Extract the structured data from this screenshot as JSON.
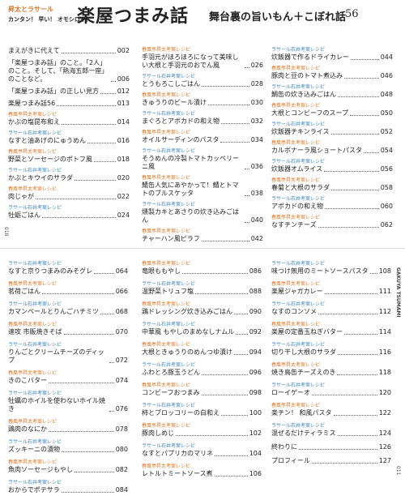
{
  "header": {
    "authors": "昇太とラサール",
    "tagline": "カンタン！ 早い！ オモシロイ！",
    "title": "楽屋つまみ話",
    "subtitle": "舞台裏の旨いもん＋こぼれ話",
    "subtitle_number": "56"
  },
  "left_page_number": "010",
  "right_page_number": "011",
  "side_label": "GAKUYA TSUMAMI",
  "top_columns": [
    [
      {
        "title": "まえがきに代えて",
        "page": "002"
      },
      {
        "title": "「楽屋つまみ話」のこと。「2人」のこと。そして、「熱海五郎一座」のことなど。",
        "page": "006"
      },
      {
        "title": "「楽屋つまみ話」の正しい見方",
        "page": "012"
      },
      {
        "title": "楽屋つまみ話56",
        "page": "013"
      },
      {
        "tag": "春風亭昇太考案レシピ",
        "tag_color": "#e0782a",
        "title": "かぶの塩昆布和え",
        "page": "014"
      },
      {
        "tag": "ラサール石井考案レシピ",
        "tag_color": "#3f86c6",
        "title": "なすと油あげのにゅうめん",
        "page": "016"
      },
      {
        "tag": "春風亭昇太考案レシピ",
        "tag_color": "#e0782a",
        "title": "野菜とソーセージのポトフ風",
        "page": "018"
      },
      {
        "tag": "ラサール石井考案レシピ",
        "tag_color": "#3f86c6",
        "title": "かぶとキウイのサラダ",
        "page": "020"
      },
      {
        "tag": "春風亭昇太考案レシピ",
        "tag_color": "#e0782a",
        "title": "肉じゃが",
        "page": "022"
      },
      {
        "tag": "ラサール石井考案レシピ",
        "tag_color": "#3f86c6",
        "title": "牡蛎ごはん",
        "page": "024"
      }
    ],
    [
      {
        "tag": "春風亭昇太考案レシピ",
        "tag_color": "#e0782a",
        "title": "手羽元がほろほろになって美味しい大根と手羽元のおでん風",
        "page": "026"
      },
      {
        "tag": "ラサール石井考案レシピ",
        "tag_color": "#3f86c6",
        "title": "とうもろこしごはん",
        "page": "028"
      },
      {
        "tag": "春風亭昇太考案レシピ",
        "tag_color": "#e0782a",
        "title": "きゅうりのビール漬け",
        "page": "030"
      },
      {
        "tag": "ラサール石井考案レシピ",
        "tag_color": "#3f86c6",
        "title": "まぐろとアボカドの和え物",
        "page": "032"
      },
      {
        "tag": "春風亭昇太考案レシピ",
        "tag_color": "#e0782a",
        "title": "オイルサーディンのパスタ",
        "page": "034"
      },
      {
        "tag": "ラサール石井考案レシピ",
        "tag_color": "#3f86c6",
        "title": "そうめんの冷製トマトカッペリーニ風",
        "page": "036"
      },
      {
        "tag": "春風亭昇太考案レシピ",
        "tag_color": "#e0782a",
        "title": "鯖缶人気にあやかって！鯖とトマトのブルスケッタ",
        "page": "038"
      },
      {
        "tag": "ラサール石井考案レシピ",
        "tag_color": "#3f86c6",
        "title": "燻製カキとあさりの炊き込みごはん",
        "page": "040"
      },
      {
        "tag": "春風亭昇太考案レシピ",
        "tag_color": "#e0782a",
        "title": "チャーハン風ピラフ",
        "page": "042"
      }
    ],
    [
      {
        "tag": "ラサール石井考案レシピ",
        "tag_color": "#3f86c6",
        "title": "炊飯器で作るドライカレー",
        "page": "044"
      },
      {
        "tag": "春風亭昇太考案レシピ",
        "tag_color": "#e0782a",
        "title": "豚肉と豆のトマト煮込み",
        "page": "046"
      },
      {
        "tag": "ラサール石井考案レシピ",
        "tag_color": "#3f86c6",
        "title": "鯛缶の炊き込みごはん",
        "page": "048"
      },
      {
        "tag": "春風亭昇太考案レシピ",
        "tag_color": "#e0782a",
        "title": "大根とコンビーフのスープ",
        "page": "050"
      },
      {
        "tag": "ラサール石井考案レシピ",
        "tag_color": "#3f86c6",
        "title": "炊飯器チキンライス",
        "page": "052"
      },
      {
        "tag": "春風亭昇太考案レシピ",
        "tag_color": "#e0782a",
        "title": "カルボナーラ風ショートパスタ",
        "page": "054"
      },
      {
        "tag": "ラサール石井考案レシピ",
        "tag_color": "#3f86c6",
        "title": "炊飯器オムライス",
        "page": "056"
      },
      {
        "tag": "春風亭昇太考案レシピ",
        "tag_color": "#e0782a",
        "title": "春菊と大根のサラダ",
        "page": "058"
      },
      {
        "tag": "ラサール石井考案レシピ",
        "tag_color": "#3f86c6",
        "title": "アボカドの和え物",
        "page": "060"
      },
      {
        "tag": "春風亭昇太考案レシピ",
        "tag_color": "#e0782a",
        "title": "なすチンチーズ",
        "page": "062"
      }
    ]
  ],
  "bottom_columns": [
    [
      {
        "tag": "ラサール石井考案レシピ",
        "tag_color": "#3f86c6",
        "title": "なすと京りつまみのみそグレ",
        "page": "064"
      },
      {
        "tag": "春風亭昇太考案レシピ",
        "tag_color": "#e0782a",
        "title": "茗荷ごはん",
        "page": "066"
      },
      {
        "tag": "ラサール石井考案レシピ",
        "tag_color": "#3f86c6",
        "title": "カマンベールとりんごハチミツ",
        "page": "068"
      },
      {
        "tag": "春風亭昇太考案レシピ",
        "tag_color": "#e0782a",
        "title": "速攻 市販焼きそば",
        "page": "070"
      },
      {
        "tag": "ラサール石井考案レシピ",
        "tag_color": "#3f86c6",
        "title": "りんごとクリームチーズのディップ",
        "page": "072"
      },
      {
        "tag": "春風亭昇太考案レシピ",
        "tag_color": "#e0782a",
        "title": "きのこバター",
        "page": "074"
      },
      {
        "tag": "ラサール石井考案レシピ",
        "tag_color": "#3f86c6",
        "title": "牡蠣のホイルを使わないホイル焼き",
        "page": "076"
      },
      {
        "tag": "春風亭昇太考案レシピ",
        "tag_color": "#e0782a",
        "title": "鶏肉のなにか",
        "page": "078"
      },
      {
        "tag": "ラサール石井考案レシピ",
        "tag_color": "#3f86c6",
        "title": "ズッキーニの漬物",
        "page": "080"
      },
      {
        "tag": "春風亭昇太考案レシピ",
        "tag_color": "#e0782a",
        "title": "魚肉ソーセージもやし",
        "page": "082"
      },
      {
        "tag": "ラサール石井考案レシピ",
        "tag_color": "#3f86c6",
        "title": "おからでポテサラ",
        "page": "084"
      }
    ],
    [
      {
        "tag": "春風亭昇太考案レシピ",
        "tag_color": "#e0782a",
        "title": "竜眼ももやし",
        "page": "086"
      },
      {
        "tag": "ラサール石井考案レシピ",
        "tag_color": "#3f86c6",
        "title": "温野菜トリュフ塩",
        "page": "088"
      },
      {
        "tag": "春風亭昇太考案レシピ",
        "tag_color": "#e0782a",
        "title": "鶏ドレッシング炊き込みごはん",
        "page": "090"
      },
      {
        "tag": "ラサール石井考案レシピ",
        "tag_color": "#3f86c6",
        "title": "中華風 もやしのまめなしナムル",
        "page": "092"
      },
      {
        "tag": "春風亭昇太考案レシピ",
        "tag_color": "#e0782a",
        "title": "大根ときゅうりのめんつゆ漬け",
        "page": "094"
      },
      {
        "tag": "ラサール石井考案レシピ",
        "tag_color": "#3f86c6",
        "title": "ふわとろ豚玉うどん",
        "page": "096"
      },
      {
        "tag": "春風亭昇太考案レシピ",
        "tag_color": "#e0782a",
        "title": "コンビーフおつまみ",
        "page": "098"
      },
      {
        "tag": "ラサール石井考案レシピ",
        "tag_color": "#3f86c6",
        "title": "柿とブロッコリーの白和え",
        "page": "100"
      },
      {
        "tag": "春風亭昇太考案レシピ",
        "tag_color": "#e0782a",
        "title": "豚肉しめじ",
        "page": "102"
      },
      {
        "tag": "ラサール石井考案レシピ",
        "tag_color": "#3f86c6",
        "title": "なすとパプリカのマリネ",
        "page": "104"
      },
      {
        "tag": "春風亭昇太考案レシピ",
        "tag_color": "#e0782a",
        "title": "レトルトミートソース煮",
        "page": "106"
      }
    ],
    [
      {
        "tag": "ラサール石井考案レシピ",
        "tag_color": "#3f86c6",
        "title": "味つけ無用のミートソースパスタ",
        "page": "108"
      },
      {
        "tag": "春風亭昇太考案レシピ",
        "tag_color": "#e0782a",
        "title": "楽屋ジャガカレー",
        "page": "111"
      },
      {
        "tag": "ラサール石井考案レシピ",
        "tag_color": "#3f86c6",
        "title": "なすのコンソメ",
        "page": "112"
      },
      {
        "tag": "春風亭昇太考案レシピ",
        "tag_color": "#e0782a",
        "title": "楽屋の定番玉ねぎバター",
        "page": "114"
      },
      {
        "tag": "ラサール石井考案レシピ",
        "tag_color": "#3f86c6",
        "title": "切り干し大根のサラダ",
        "page": "116"
      },
      {
        "tag": "春風亭昇太考案レシピ",
        "tag_color": "#e0782a",
        "title": "焼き鳥缶チーズえのき",
        "page": "118"
      },
      {
        "tag": "ラサール石井考案レシピ",
        "tag_color": "#3f86c6",
        "title": "ローイゲーオ",
        "page": "120"
      },
      {
        "tag": "春風亭昇太考案レシピ",
        "tag_color": "#e0782a",
        "title": "楽チン！ 和風パスタ",
        "page": "122"
      },
      {
        "tag": "ラサール石井考案レシピ",
        "tag_color": "#3f86c6",
        "title": "混ぜるだけティラミス",
        "page": "124"
      },
      {
        "title": "終わりに",
        "page": "126"
      },
      {
        "title": "プロフィール",
        "page": "127"
      }
    ]
  ]
}
